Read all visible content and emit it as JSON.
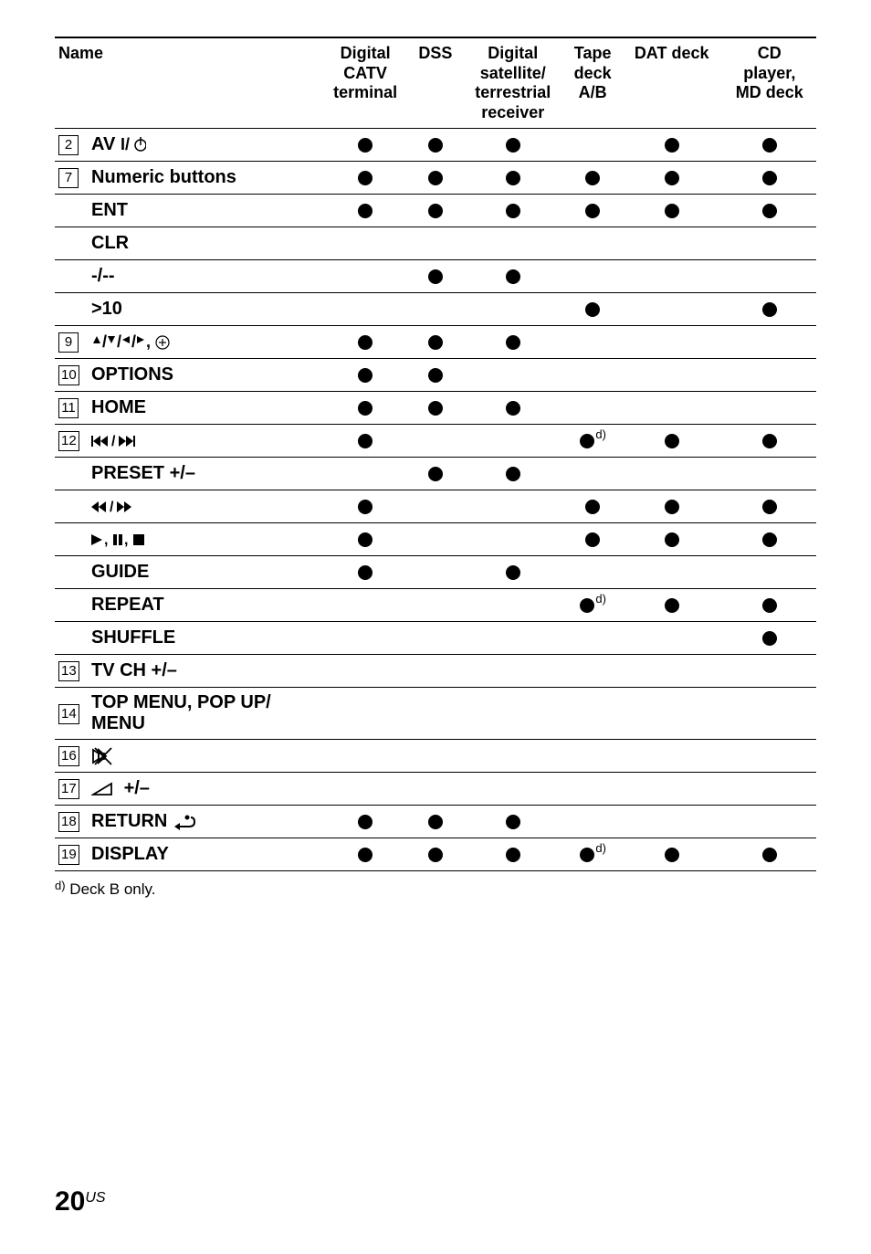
{
  "headers": {
    "name": "Name",
    "c1": "Digital\nCATV\nterminal",
    "c2": "DSS",
    "c3": "Digital\nsatellite/\nterrestrial\nreceiver",
    "c4": "Tape\ndeck\nA/B",
    "c5": "DAT deck",
    "c6": "CD\nplayer,\nMD deck"
  },
  "rows": [
    {
      "num": "2",
      "label_html": "<b>AV </b><svg class='icon-svg' width='28' height='18'><text x='0' y='14' font-size='18' font-weight='bold'>I/</text><circle cx='22' cy='9' r='6' fill='none' stroke='#000' stroke-width='1.5'/><line x1='22' y1='0' x2='22' y2='9' stroke='#000' stroke-width='1.5'/></svg>",
      "cells": [
        "d",
        "d",
        "d",
        "",
        "d",
        "d"
      ],
      "top": true
    },
    {
      "num": "7",
      "label": "Numeric buttons",
      "cells": [
        "d",
        "d",
        "d",
        "d",
        "d",
        "d"
      ],
      "top": true
    },
    {
      "num": "",
      "label": "ENT",
      "cells": [
        "d",
        "d",
        "d",
        "d",
        "d",
        "d"
      ],
      "top": true
    },
    {
      "num": "",
      "label": "CLR",
      "cells": [
        "",
        "",
        "",
        "",
        "",
        ""
      ],
      "top": true
    },
    {
      "num": "",
      "label": "-/--",
      "cells": [
        "",
        "d",
        "d",
        "",
        "",
        ""
      ],
      "top": true
    },
    {
      "num": "",
      "label": ">10",
      "cells": [
        "",
        "",
        "",
        "d",
        "",
        "d"
      ],
      "top": true
    },
    {
      "num": "9",
      "label_html": "<svg class='icon-svg' width='90' height='18'><polygon points='6,2 10,10 2,10' fill='#000'/><text x='12' y='14' font-size='18' font-weight='bold'>/</text><polygon points='22,10 18,2 26,2' fill='#000'/><text x='28' y='14' font-size='18' font-weight='bold'>/</text><polygon points='34,6 42,2 42,10' fill='#000'/><text x='44' y='14' font-size='18' font-weight='bold'>/</text><polygon points='58,6 50,2 50,10' fill='#000'/><text x='60' y='14' font-size='18' font-weight='bold'>,</text><circle cx='78' cy='9' r='7' fill='none' stroke='#000' stroke-width='1.2'/><line x1='74' y1='9' x2='82' y2='9' stroke='#000' stroke-width='1.2'/><line x1='78' y1='5' x2='78' y2='13' stroke='#000' stroke-width='1.2'/></svg>",
      "cells": [
        "d",
        "d",
        "d",
        "",
        "",
        ""
      ],
      "top": true
    },
    {
      "num": "10",
      "label": "OPTIONS",
      "cells": [
        "d",
        "d",
        "",
        "",
        "",
        ""
      ],
      "top": true
    },
    {
      "num": "11",
      "label": "HOME",
      "cells": [
        "d",
        "d",
        "d",
        "",
        "",
        ""
      ],
      "top": true
    },
    {
      "num": "12",
      "label_html": "<svg class='icon-svg' width='70' height='16'><rect x='0' y='2' width='2' height='12' fill='#000'/><polygon points='2,8 10,2 10,14' fill='#000'/><polygon points='10,8 18,2 18,14' fill='#000'/><text x='22' y='13' font-size='16' font-weight='bold'>/</text><polygon points='30,2 38,8 30,14' fill='#000'/><polygon points='38,2 46,8 38,14' fill='#000'/><rect x='46' y='2' width='2' height='12' fill='#000'/></svg>",
      "cells": [
        "d",
        "",
        "",
        "dd",
        "d",
        "d"
      ],
      "top": true
    },
    {
      "num": "",
      "label": "PRESET +/–",
      "cells": [
        "",
        "d",
        "d",
        "",
        "",
        ""
      ],
      "top": true
    },
    {
      "num": "",
      "label_html": "<svg class='icon-svg' width='60' height='16'><polygon points='0,8 8,2 8,14' fill='#000'/><polygon points='8,8 16,2 16,14' fill='#000'/><text x='20' y='13' font-size='16' font-weight='bold'>/</text><polygon points='28,2 36,8 28,14' fill='#000'/><polygon points='36,2 44,8 36,14' fill='#000'/></svg>",
      "cells": [
        "d",
        "",
        "",
        "d",
        "d",
        "d"
      ],
      "top": true
    },
    {
      "num": "",
      "label_html": "<svg class='icon-svg' width='70' height='16'><polygon points='0,2 12,8 0,14' fill='#000'/><text x='14' y='13' font-size='16' font-weight='bold'>,</text><rect x='24' y='2' width='4' height='12' fill='#000'/><rect x='30' y='2' width='4' height='12' fill='#000'/><text x='36' y='13' font-size='16' font-weight='bold'>,</text><rect x='46' y='2' width='12' height='12' fill='#000'/></svg>",
      "cells": [
        "d",
        "",
        "",
        "d",
        "d",
        "d"
      ],
      "top": true
    },
    {
      "num": "",
      "label": "GUIDE",
      "cells": [
        "d",
        "",
        "d",
        "",
        "",
        ""
      ],
      "top": true
    },
    {
      "num": "",
      "label": "REPEAT",
      "cells": [
        "",
        "",
        "",
        "dd",
        "d",
        "d"
      ],
      "top": true
    },
    {
      "num": "",
      "label": "SHUFFLE",
      "cells": [
        "",
        "",
        "",
        "",
        "",
        "d"
      ],
      "top": true
    },
    {
      "num": "13",
      "label": "TV CH +/–",
      "cells": [
        "",
        "",
        "",
        "",
        "",
        ""
      ],
      "top": true
    },
    {
      "num": "14",
      "label_html": "<b>TOP MENU, POP UP/<br>MENU</b>",
      "cells": [
        "",
        "",
        "",
        "",
        "",
        ""
      ],
      "top": true
    },
    {
      "num": "16",
      "label_html": "<svg class='icon-svg' width='26' height='22'><path d='M2 4 L8 8 L8 14 L2 18 Z M8 8 L14 8 L14 14 L8 14 Z' fill='none' stroke='#000' stroke-width='1.8'/><path d='M8 4 L8 18 L16 11 Z' fill='none' stroke='#000' stroke-width='1.8'/><line x1='4' y1='2' x2='22' y2='20' stroke='#000' stroke-width='1.8'/><line x1='22' y1='2' x2='4' y2='20' stroke='#000' stroke-width='1.8'/></svg>",
      "cells": [
        "",
        "",
        "",
        "",
        "",
        ""
      ],
      "top": true
    },
    {
      "num": "17",
      "label_html": "<svg class='icon-svg' width='30' height='16'><polygon points='2,14 22,14 22,2' fill='none' stroke='#000' stroke-width='1.8'/></svg> <b>+/–</b>",
      "cells": [
        "",
        "",
        "",
        "",
        "",
        ""
      ],
      "top": true
    },
    {
      "num": "18",
      "label_html": "<b>RETURN </b><svg class='icon-svg' width='26' height='18'><path d='M20 4 Q24 4 24 9 Q24 14 18 14 L6 14' fill='none' stroke='#000' stroke-width='2'/><polygon points='2,14 8,10 8,18' fill='#000'/><circle cx='16' cy='4' r='2.5' fill='#000'/></svg>",
      "cells": [
        "d",
        "d",
        "d",
        "",
        "",
        ""
      ],
      "top": true
    },
    {
      "num": "19",
      "label": "DISPLAY",
      "cells": [
        "d",
        "d",
        "d",
        "dd",
        "d",
        "d"
      ],
      "top": true,
      "last": true
    }
  ],
  "footnote_sup": "d)",
  "footnote_text": "Deck B only.",
  "page_number": "20",
  "page_suffix": "US",
  "colors": {
    "text": "#000000",
    "bg": "#ffffff"
  },
  "fonts": {
    "body_size": 20,
    "header_size": 18
  }
}
